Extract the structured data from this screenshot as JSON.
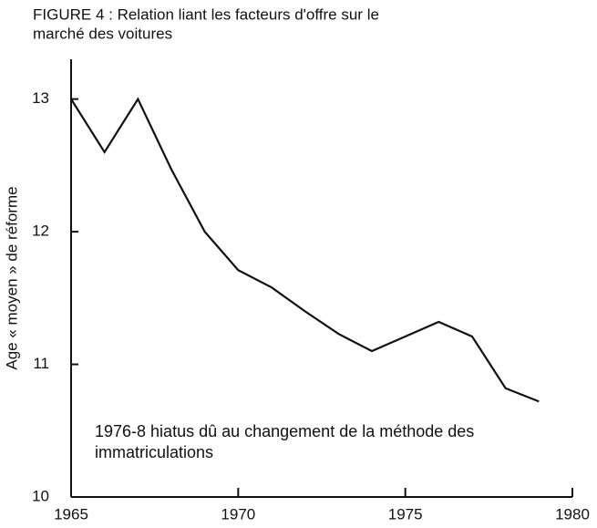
{
  "chart_data": {
    "type": "line",
    "title": [
      "FIGURE 4 : Relation liant les facteurs d'offre sur le",
      "marché des voitures"
    ],
    "ylabel": "Age « moyen » de réforme",
    "annotation": [
      "1976-8 hiatus dû au changement de la méthode des",
      "immatriculations"
    ],
    "x": [
      1965,
      1966,
      1967,
      1968,
      1969,
      1970,
      1971,
      1972,
      1973,
      1974,
      1975,
      1976,
      1977,
      1978,
      1979
    ],
    "series": [
      {
        "name": "Age moyen de réforme",
        "color": "#111111",
        "values": [
          13.0,
          12.6,
          13.0,
          12.47,
          12.0,
          11.71,
          11.58,
          11.4,
          11.23,
          11.1,
          11.21,
          11.32,
          11.21,
          10.82,
          10.72
        ]
      }
    ],
    "xlim": [
      1965,
      1980
    ],
    "xticks": [
      1965,
      1970,
      1975,
      1980
    ],
    "ylim": [
      10,
      13.3
    ],
    "yticks": [
      10,
      11,
      12,
      13
    ],
    "grid": false
  }
}
